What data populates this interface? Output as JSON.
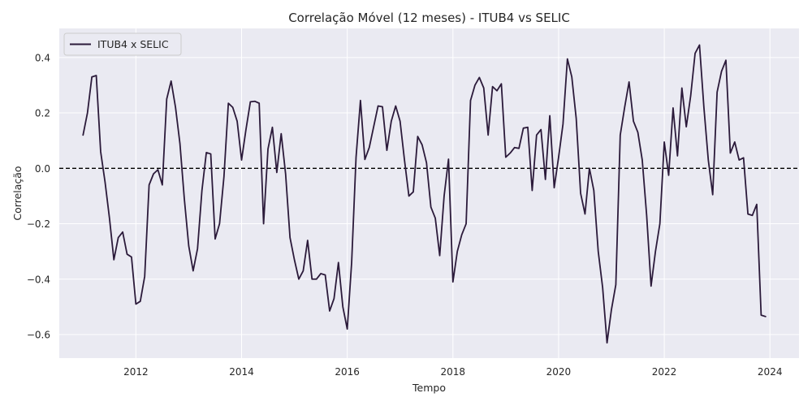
{
  "chart_data": {
    "type": "line",
    "title": "Correlação Móvel (12 meses) - ITUB4 vs SELIC",
    "xlabel": "Tempo",
    "ylabel": "Correlação",
    "xlim": [
      2010.55,
      2024.55
    ],
    "ylim": [
      -0.685,
      0.505
    ],
    "x_ticks": [
      2012,
      2014,
      2016,
      2018,
      2020,
      2022,
      2024
    ],
    "y_ticks": [
      0.4,
      0.2,
      0.0,
      -0.2,
      -0.4,
      -0.6
    ],
    "y_tick_labels": [
      "0.4",
      "0.2",
      "0.0",
      "−0.2",
      "−0.4",
      "−0.6"
    ],
    "grid": true,
    "legend_position": "upper-left",
    "reference_line": {
      "y": 0.0,
      "style": "dashed",
      "color": "#000000"
    },
    "colors": {
      "series": "#2b1a3a",
      "background": "#eaeaf2",
      "grid": "#ffffff"
    },
    "series": [
      {
        "name": "ITUB4 x SELIC",
        "x_start_year": 2011.0,
        "step_months": 1,
        "values": [
          0.12,
          0.2,
          0.33,
          0.335,
          0.06,
          -0.05,
          -0.18,
          -0.33,
          -0.25,
          -0.23,
          -0.31,
          -0.32,
          -0.49,
          -0.48,
          -0.39,
          -0.06,
          -0.02,
          -0.005,
          -0.06,
          0.25,
          0.315,
          0.22,
          0.09,
          -0.11,
          -0.28,
          -0.37,
          -0.29,
          -0.08,
          0.057,
          0.052,
          -0.255,
          -0.2,
          -0.03,
          0.235,
          0.22,
          0.17,
          0.03,
          0.14,
          0.24,
          0.242,
          0.235,
          -0.2,
          0.07,
          0.148,
          -0.015,
          0.125,
          -0.02,
          -0.25,
          -0.33,
          -0.4,
          -0.37,
          -0.26,
          -0.4,
          -0.4,
          -0.38,
          -0.385,
          -0.515,
          -0.47,
          -0.34,
          -0.5,
          -0.58,
          -0.34,
          0.04,
          0.245,
          0.032,
          0.075,
          0.15,
          0.225,
          0.222,
          0.065,
          0.17,
          0.225,
          0.17,
          0.03,
          -0.1,
          -0.085,
          0.115,
          0.085,
          0.02,
          -0.14,
          -0.18,
          -0.315,
          -0.1,
          0.033,
          -0.41,
          -0.3,
          -0.24,
          -0.2,
          0.245,
          0.3,
          0.328,
          0.29,
          0.12,
          0.295,
          0.28,
          0.305,
          0.04,
          0.055,
          0.075,
          0.072,
          0.145,
          0.148,
          -0.08,
          0.12,
          0.14,
          -0.04,
          0.19,
          -0.07,
          0.04,
          0.16,
          0.395,
          0.33,
          0.18,
          -0.09,
          -0.165,
          0.0,
          -0.08,
          -0.3,
          -0.43,
          -0.63,
          -0.51,
          -0.42,
          0.12,
          0.22,
          0.312,
          0.17,
          0.13,
          0.03,
          -0.17,
          -0.425,
          -0.3,
          -0.2,
          0.095,
          -0.025,
          0.218,
          0.045,
          0.29,
          0.15,
          0.262,
          0.415,
          0.445,
          0.22,
          0.03,
          -0.095,
          0.275,
          0.35,
          0.39,
          0.055,
          0.095,
          0.03,
          0.038,
          -0.165,
          -0.17,
          -0.13,
          -0.53,
          -0.535
        ]
      }
    ]
  }
}
